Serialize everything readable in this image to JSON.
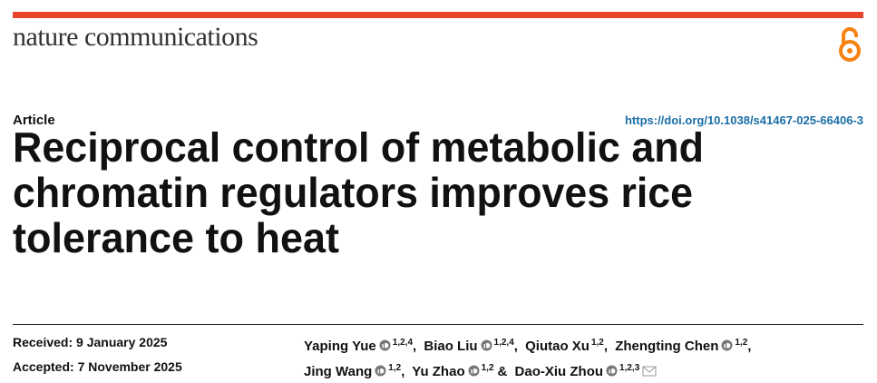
{
  "header": {
    "journal": "nature communications"
  },
  "article": {
    "type": "Article",
    "doi": "https://doi.org/10.1038/s41467-025-66406-3",
    "title_lines": [
      "Reciprocal control of metabolic and",
      "chromatin regulators improves rice",
      "tolerance to heat"
    ],
    "received": "Received: 9 January 2025",
    "accepted": "Accepted: 7 November 2025",
    "authors": [
      {
        "name": "Yaping Yue",
        "orcid": true,
        "affiliations": "1,2,4",
        "suffix": ","
      },
      {
        "name": "Biao Liu",
        "orcid": true,
        "affiliations": "1,2,4",
        "suffix": ","
      },
      {
        "name": "Qiutao Xu",
        "orcid": false,
        "affiliations": "1,2",
        "suffix": ","
      },
      {
        "name": "Zhengting Chen",
        "orcid": true,
        "affiliations": "1,2",
        "suffix": ","
      },
      {
        "name": "Jing Wang",
        "orcid": true,
        "affiliations": "1,2",
        "suffix": ","
      },
      {
        "name": "Yu Zhao",
        "orcid": true,
        "affiliations": "1,2",
        "suffix": "&"
      },
      {
        "name": "Dao-Xiu Zhou",
        "orcid": true,
        "affiliations": "1,2,3",
        "corresponding": true
      }
    ]
  }
}
